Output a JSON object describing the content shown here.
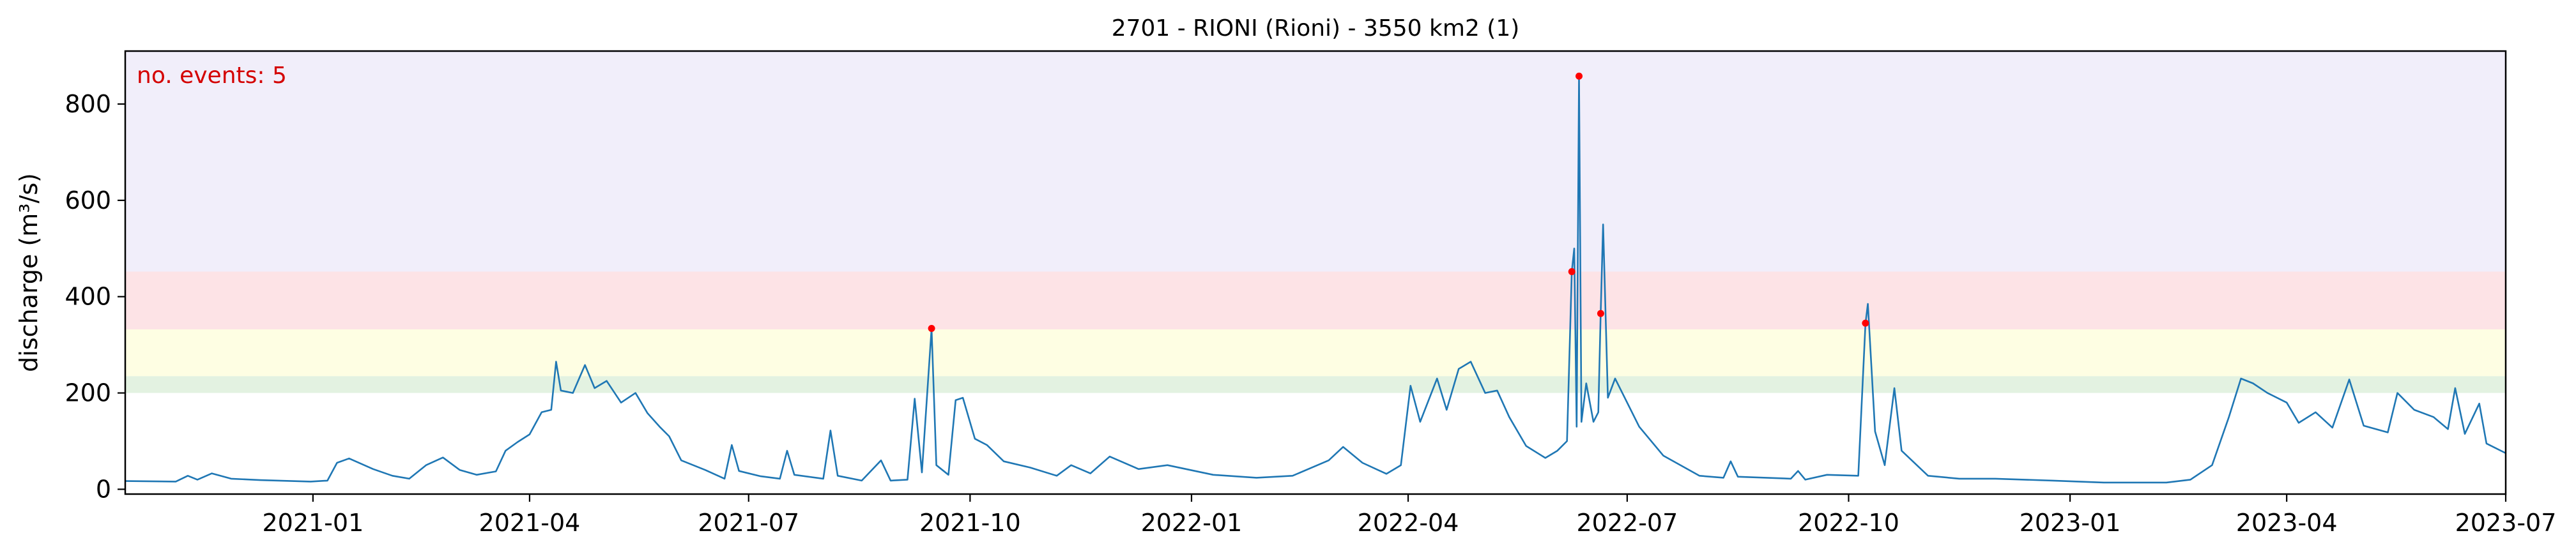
{
  "chart_data": {
    "type": "line",
    "title": "2701 - RIONI (Rioni) - 3550 km2 (1)",
    "xlabel": "",
    "ylabel": "discharge (m³/s)",
    "x_range": [
      "2020-10-15",
      "2023-07-01"
    ],
    "ylim": [
      -10,
      910
    ],
    "x_ticks": [
      {
        "date": "2021-01-01",
        "label": "2021-01"
      },
      {
        "date": "2021-04-01",
        "label": "2021-04"
      },
      {
        "date": "2021-07-01",
        "label": "2021-07"
      },
      {
        "date": "2021-10-01",
        "label": "2021-10"
      },
      {
        "date": "2022-01-01",
        "label": "2022-01"
      },
      {
        "date": "2022-04-01",
        "label": "2022-04"
      },
      {
        "date": "2022-07-01",
        "label": "2022-07"
      },
      {
        "date": "2022-10-01",
        "label": "2022-10"
      },
      {
        "date": "2023-01-01",
        "label": "2023-01"
      },
      {
        "date": "2023-04-01",
        "label": "2023-04"
      },
      {
        "date": "2023-07-01",
        "label": "2023-07"
      }
    ],
    "y_ticks": [
      0,
      200,
      400,
      600,
      800
    ],
    "grid": false,
    "bands": [
      {
        "from": 200,
        "to": 235,
        "color": "#e3f2e1"
      },
      {
        "from": 235,
        "to": 332,
        "color": "#fefee3"
      },
      {
        "from": 332,
        "to": 452,
        "color": "#fde3e6"
      },
      {
        "from": 452,
        "to": 910,
        "color": "#f1eefa"
      }
    ],
    "series": [
      {
        "color": "#1f77b4",
        "points": [
          [
            "2020-10-15",
            17
          ],
          [
            "2020-11-05",
            16
          ],
          [
            "2020-11-10",
            28
          ],
          [
            "2020-11-14",
            20
          ],
          [
            "2020-11-20",
            33
          ],
          [
            "2020-11-28",
            22
          ],
          [
            "2020-12-10",
            19
          ],
          [
            "2020-12-31",
            16
          ],
          [
            "2021-01-07",
            18
          ],
          [
            "2021-01-11",
            55
          ],
          [
            "2021-01-16",
            64
          ],
          [
            "2021-01-26",
            42
          ],
          [
            "2021-02-03",
            28
          ],
          [
            "2021-02-10",
            22
          ],
          [
            "2021-02-17",
            50
          ],
          [
            "2021-02-24",
            66
          ],
          [
            "2021-03-03",
            40
          ],
          [
            "2021-03-10",
            30
          ],
          [
            "2021-03-18",
            37
          ],
          [
            "2021-03-22",
            80
          ],
          [
            "2021-03-27",
            98
          ],
          [
            "2021-04-01",
            114
          ],
          [
            "2021-04-06",
            160
          ],
          [
            "2021-04-10",
            165
          ],
          [
            "2021-04-12",
            265
          ],
          [
            "2021-04-14",
            205
          ],
          [
            "2021-04-19",
            200
          ],
          [
            "2021-04-24",
            258
          ],
          [
            "2021-04-28",
            210
          ],
          [
            "2021-05-03",
            225
          ],
          [
            "2021-05-09",
            180
          ],
          [
            "2021-05-15",
            200
          ],
          [
            "2021-05-20",
            158
          ],
          [
            "2021-05-25",
            130
          ],
          [
            "2021-05-29",
            110
          ],
          [
            "2021-06-03",
            60
          ],
          [
            "2021-06-13",
            40
          ],
          [
            "2021-06-21",
            22
          ],
          [
            "2021-06-24",
            92
          ],
          [
            "2021-06-27",
            38
          ],
          [
            "2021-07-06",
            27
          ],
          [
            "2021-07-14",
            22
          ],
          [
            "2021-07-17",
            80
          ],
          [
            "2021-07-20",
            30
          ],
          [
            "2021-08-01",
            22
          ],
          [
            "2021-08-04",
            122
          ],
          [
            "2021-08-07",
            28
          ],
          [
            "2021-08-17",
            18
          ],
          [
            "2021-08-25",
            60
          ],
          [
            "2021-08-29",
            18
          ],
          [
            "2021-09-05",
            20
          ],
          [
            "2021-09-08",
            188
          ],
          [
            "2021-09-11",
            35
          ],
          [
            "2021-09-15",
            334
          ],
          [
            "2021-09-17",
            50
          ],
          [
            "2021-09-22",
            30
          ],
          [
            "2021-09-25",
            185
          ],
          [
            "2021-09-28",
            190
          ],
          [
            "2021-10-03",
            105
          ],
          [
            "2021-10-08",
            92
          ],
          [
            "2021-10-15",
            58
          ],
          [
            "2021-10-26",
            45
          ],
          [
            "2021-11-06",
            28
          ],
          [
            "2021-11-12",
            50
          ],
          [
            "2021-11-20",
            33
          ],
          [
            "2021-11-28",
            68
          ],
          [
            "2021-12-10",
            42
          ],
          [
            "2021-12-22",
            50
          ],
          [
            "2022-01-10",
            30
          ],
          [
            "2022-01-28",
            24
          ],
          [
            "2022-02-12",
            28
          ],
          [
            "2022-02-27",
            60
          ],
          [
            "2022-03-05",
            88
          ],
          [
            "2022-03-13",
            55
          ],
          [
            "2022-03-23",
            32
          ],
          [
            "2022-03-29",
            50
          ],
          [
            "2022-04-02",
            215
          ],
          [
            "2022-04-06",
            140
          ],
          [
            "2022-04-13",
            230
          ],
          [
            "2022-04-17",
            165
          ],
          [
            "2022-04-22",
            250
          ],
          [
            "2022-04-27",
            265
          ],
          [
            "2022-05-03",
            200
          ],
          [
            "2022-05-08",
            205
          ],
          [
            "2022-05-13",
            150
          ],
          [
            "2022-05-20",
            90
          ],
          [
            "2022-05-28",
            65
          ],
          [
            "2022-06-02",
            80
          ],
          [
            "2022-06-06",
            100
          ],
          [
            "2022-06-08",
            452
          ],
          [
            "2022-06-09",
            500
          ],
          [
            "2022-06-10",
            130
          ],
          [
            "2022-06-11",
            858
          ],
          [
            "2022-06-12",
            140
          ],
          [
            "2022-06-14",
            220
          ],
          [
            "2022-06-17",
            140
          ],
          [
            "2022-06-19",
            160
          ],
          [
            "2022-06-20",
            365
          ],
          [
            "2022-06-21",
            550
          ],
          [
            "2022-06-23",
            190
          ],
          [
            "2022-06-26",
            230
          ],
          [
            "2022-07-06",
            130
          ],
          [
            "2022-07-16",
            70
          ],
          [
            "2022-07-31",
            28
          ],
          [
            "2022-08-10",
            24
          ],
          [
            "2022-08-13",
            58
          ],
          [
            "2022-08-16",
            26
          ],
          [
            "2022-09-07",
            22
          ],
          [
            "2022-09-10",
            38
          ],
          [
            "2022-09-13",
            20
          ],
          [
            "2022-09-22",
            30
          ],
          [
            "2022-10-05",
            28
          ],
          [
            "2022-10-08",
            345
          ],
          [
            "2022-10-09",
            385
          ],
          [
            "2022-10-12",
            120
          ],
          [
            "2022-10-16",
            50
          ],
          [
            "2022-10-20",
            210
          ],
          [
            "2022-10-23",
            80
          ],
          [
            "2022-11-03",
            28
          ],
          [
            "2022-11-16",
            22
          ],
          [
            "2022-12-01",
            22
          ],
          [
            "2022-12-25",
            18
          ],
          [
            "2023-01-15",
            14
          ],
          [
            "2023-02-10",
            14
          ],
          [
            "2023-02-20",
            20
          ],
          [
            "2023-03-01",
            50
          ],
          [
            "2023-03-08",
            150
          ],
          [
            "2023-03-13",
            230
          ],
          [
            "2023-03-18",
            220
          ],
          [
            "2023-03-24",
            200
          ],
          [
            "2023-04-01",
            180
          ],
          [
            "2023-04-06",
            138
          ],
          [
            "2023-04-13",
            160
          ],
          [
            "2023-04-20",
            128
          ],
          [
            "2023-04-27",
            228
          ],
          [
            "2023-05-03",
            132
          ],
          [
            "2023-05-13",
            118
          ],
          [
            "2023-05-17",
            200
          ],
          [
            "2023-05-24",
            165
          ],
          [
            "2023-06-01",
            150
          ],
          [
            "2023-06-07",
            125
          ],
          [
            "2023-06-10",
            210
          ],
          [
            "2023-06-14",
            115
          ],
          [
            "2023-06-20",
            178
          ],
          [
            "2023-06-23",
            95
          ],
          [
            "2023-07-01",
            75
          ]
        ]
      }
    ],
    "events": [
      {
        "date": "2021-09-15",
        "value": 334
      },
      {
        "date": "2022-06-08",
        "value": 452
      },
      {
        "date": "2022-06-11",
        "value": 858
      },
      {
        "date": "2022-06-20",
        "value": 365
      },
      {
        "date": "2022-10-08",
        "value": 345
      }
    ],
    "event_color": "#ff0000",
    "annotation": {
      "text": "no. events: 5",
      "color": "#d40000",
      "placement": "top-left"
    }
  }
}
